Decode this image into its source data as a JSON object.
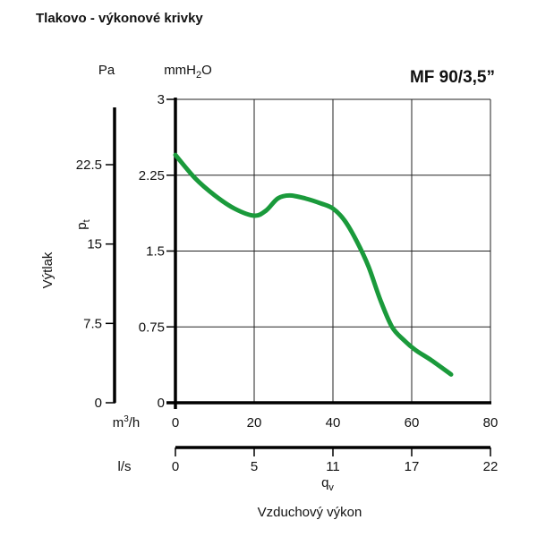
{
  "page_title": "Tlakovo - výkonové krivky",
  "chart_data": {
    "type": "line",
    "model_label": "MF 90/3,5”",
    "y_left_unit": "Pa",
    "y_unit": {
      "main": "mmH",
      "sub": "2",
      "tail": "O"
    },
    "y_axis_label": "Výtlak",
    "y_symbol": {
      "main": "p",
      "sub": "t"
    },
    "x_unit": {
      "main": "m",
      "sup": "3",
      "tail": "/h"
    },
    "x2_unit": "l/s",
    "x_symbol": {
      "main": "q",
      "sub": "v"
    },
    "x_axis_label": "Vzduchový výkon",
    "ylim": [
      0,
      3
    ],
    "xlim": [
      0,
      80
    ],
    "grid": true,
    "y_ticks": [
      "0",
      "0.75",
      "1.5",
      "2.25",
      "3"
    ],
    "y_ticks_pa": [
      "0",
      "7.5",
      "15",
      "22.5"
    ],
    "x_ticks": [
      "0",
      "20",
      "40",
      "60",
      "80"
    ],
    "x2_ticks": [
      "0",
      "5",
      "11",
      "17",
      "22"
    ],
    "series": [
      {
        "color": "#1a9a3b",
        "x": [
          0,
          5,
          10,
          15,
          20,
          23,
          26,
          29,
          33,
          37,
          40,
          43,
          46,
          49,
          52,
          55,
          58,
          61,
          65,
          70
        ],
        "y": [
          2.45,
          2.22,
          2.05,
          1.92,
          1.85,
          1.9,
          2.02,
          2.05,
          2.02,
          1.97,
          1.92,
          1.8,
          1.6,
          1.35,
          1.02,
          0.75,
          0.62,
          0.52,
          0.42,
          0.28
        ]
      }
    ]
  }
}
